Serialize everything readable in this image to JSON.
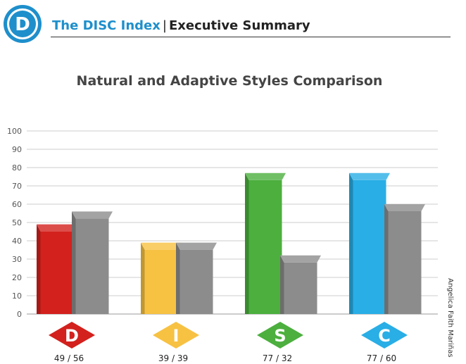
{
  "header": {
    "logo_letter": "D",
    "brand": "The DISC Index",
    "separator": "|",
    "subtitle": "Executive Summary"
  },
  "side_note": "Angelica Faith Mariñas",
  "colors": {
    "brand": "#1e8fcb",
    "D": "#d3211d",
    "I": "#f7c142",
    "S": "#4caf3e",
    "C": "#29aee6",
    "adaptive": "#8c8c8c"
  },
  "chart_data": {
    "type": "bar",
    "title": "Natural and Adaptive Styles Comparison",
    "categories": [
      "D",
      "I",
      "S",
      "C"
    ],
    "series": [
      {
        "values": [
          49,
          39,
          77,
          77
        ]
      },
      {
        "values": [
          56,
          39,
          32,
          60
        ]
      }
    ],
    "value_labels": [
      "49 / 56",
      "39 / 39",
      "77 / 32",
      "77 / 60"
    ],
    "ylim": [
      0,
      100
    ],
    "yticks": [
      0,
      10,
      20,
      30,
      40,
      50,
      60,
      70,
      80,
      90,
      100
    ],
    "grid": true
  }
}
